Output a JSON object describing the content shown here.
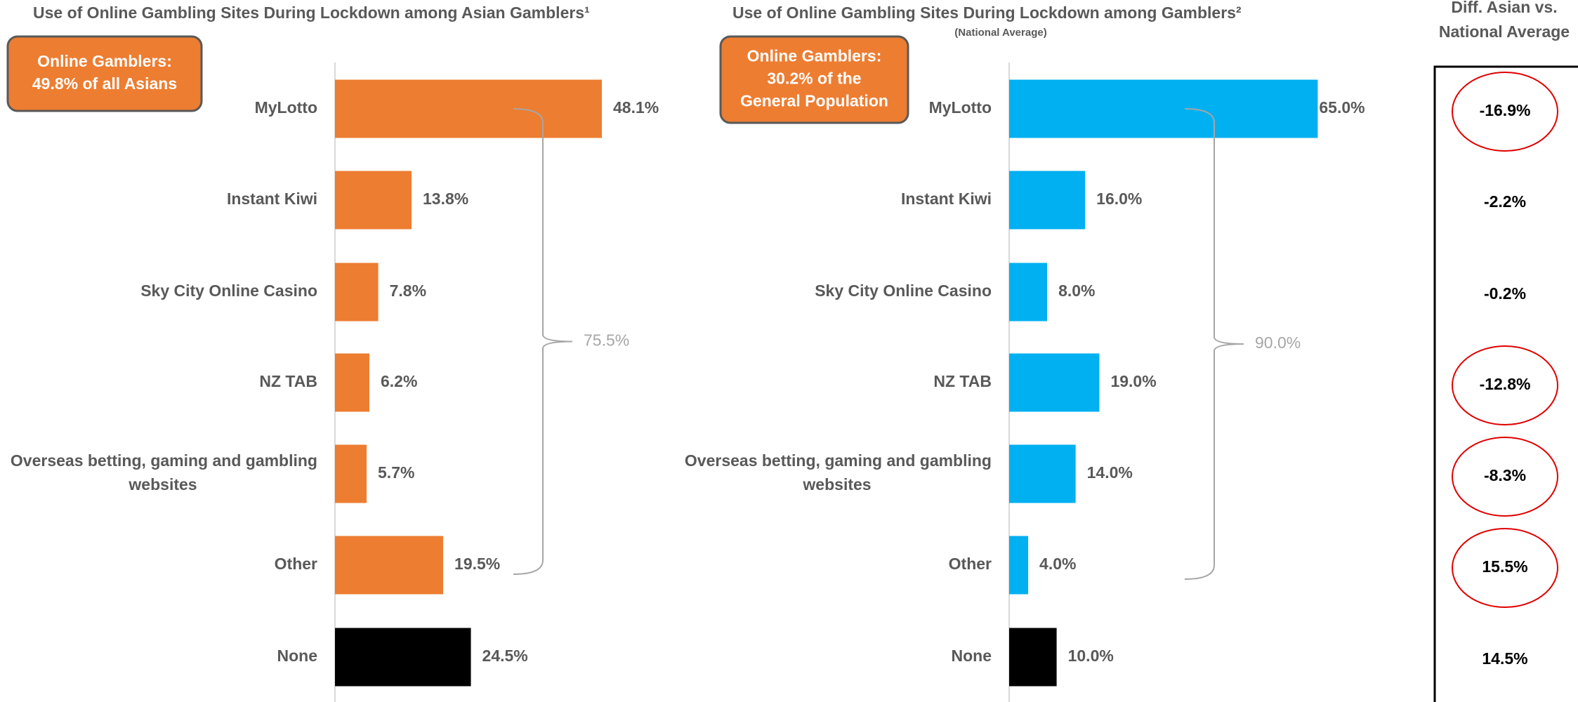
{
  "chart_data": [
    {
      "type": "bar",
      "orientation": "horizontal",
      "title": "Use of Online Gambling Sites During Lockdown among Asian Gamblers¹",
      "callout": [
        "Online Gamblers:",
        "49.8% of all Asians"
      ],
      "categories": [
        "MyLotto",
        "Instant Kiwi",
        "Sky City Online Casino",
        "NZ TAB",
        "Overseas betting, gaming and gambling websites",
        "Other",
        "None"
      ],
      "values": [
        48.1,
        13.8,
        7.8,
        6.2,
        5.7,
        19.5,
        24.5
      ],
      "value_labels": [
        "48.1%",
        "13.8%",
        "7.8%",
        "6.2%",
        "5.7%",
        "19.5%",
        "24.5%"
      ],
      "colors": [
        "#ed7d31",
        "#ed7d31",
        "#ed7d31",
        "#ed7d31",
        "#ed7d31",
        "#ed7d31",
        "#000000"
      ],
      "bracket_label": "75.5%",
      "xlim": [
        0,
        100
      ]
    },
    {
      "type": "bar",
      "orientation": "horizontal",
      "title": "Use of Online Gambling Sites During Lockdown among Gamblers²",
      "subtitle": "(National Average)",
      "callout": [
        "Online Gamblers:",
        "30.2% of the",
        "General Population"
      ],
      "categories": [
        "MyLotto",
        "Instant Kiwi",
        "Sky City Online Casino",
        "NZ TAB",
        "Overseas betting, gaming and gambling websites",
        "Other",
        "None"
      ],
      "values": [
        65.0,
        16.0,
        8.0,
        19.0,
        14.0,
        4.0,
        10.0
      ],
      "value_labels": [
        "65.0%",
        "16.0%",
        "8.0%",
        "19.0%",
        "14.0%",
        "4.0%",
        "10.0%"
      ],
      "colors": [
        "#00b0f0",
        "#00b0f0",
        "#00b0f0",
        "#00b0f0",
        "#00b0f0",
        "#00b0f0",
        "#000000"
      ],
      "bracket_label": "90.0%",
      "xlim": [
        0,
        100
      ]
    }
  ],
  "diff_table": {
    "title": [
      "Diff. Asian vs.",
      "National Average"
    ],
    "values": [
      "-16.9%",
      "-2.2%",
      "-0.2%",
      "-12.8%",
      "-8.3%",
      "15.5%",
      "14.5%"
    ],
    "circled": [
      true,
      false,
      false,
      true,
      true,
      true,
      false
    ]
  }
}
